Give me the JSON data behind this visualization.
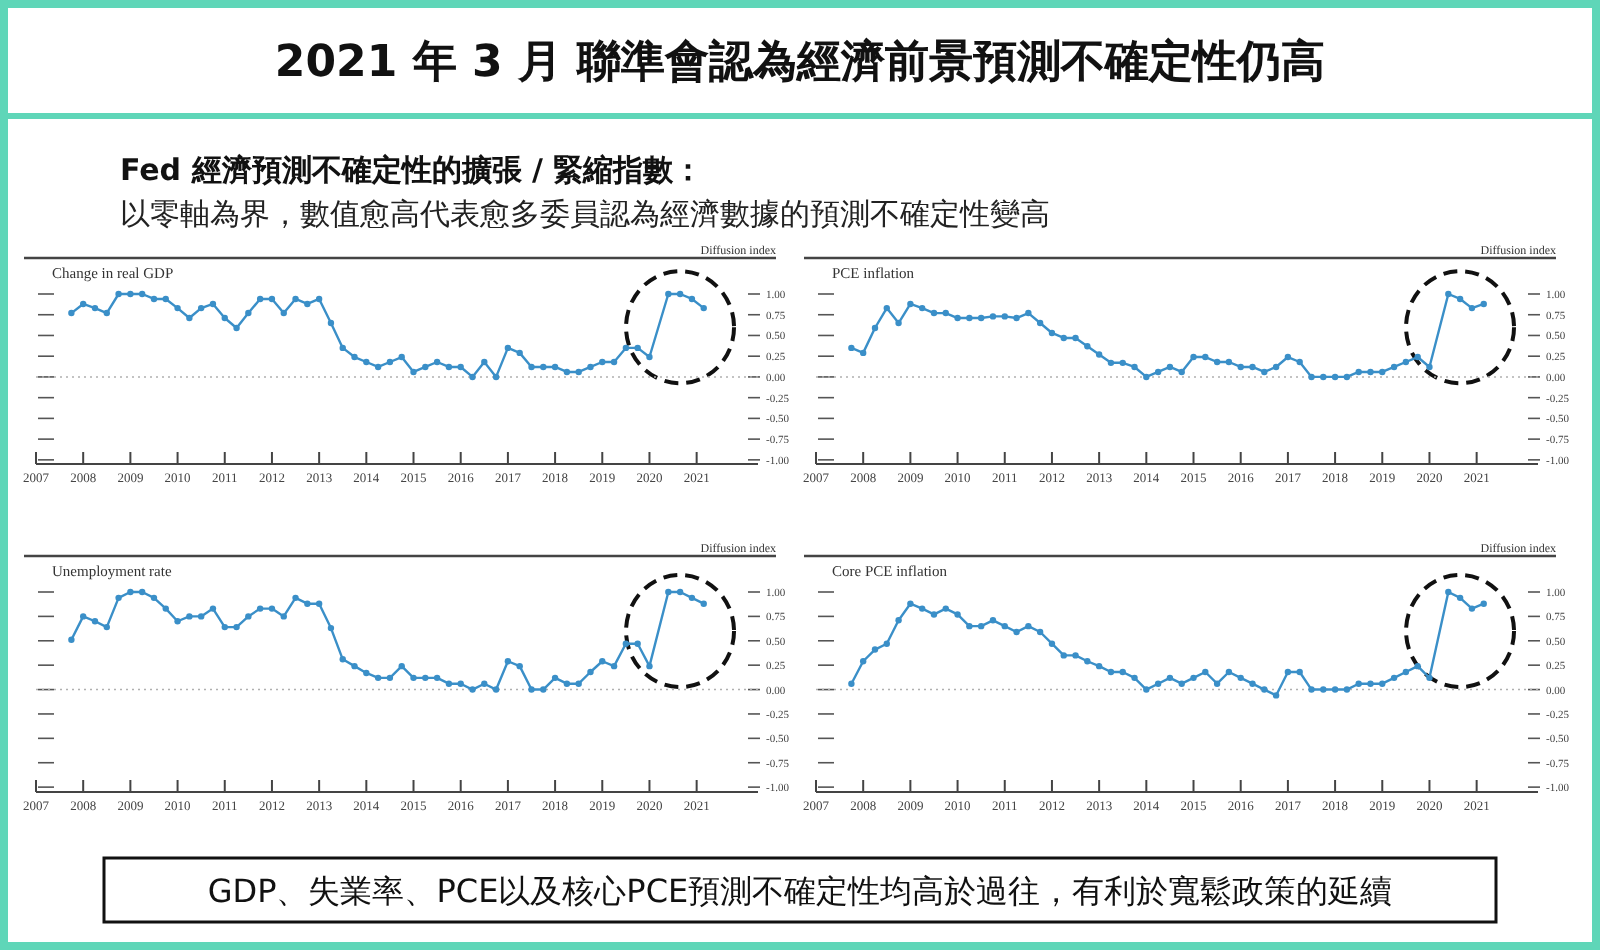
{
  "chart_data": [
    {
      "type": "other",
      "title": "2021 年 3 月 聯準會認為經濟前景預測不確定性仍高",
      "subtitle": "Fed 經濟預測不確定性的擴張 / 緊縮指數：",
      "annotations": [
        "以零軸為界，數值愈高代表愈多委員認為經濟數據的預測不確定性變高",
        "GDP、失業率、PCE以及核心PCE預測不確定性均高於過往，有利於寬鬆政策的延續"
      ]
    },
    {
      "type": "line",
      "title": "Change in real GDP",
      "ylabel": "Diffusion index",
      "marker": "circle",
      "xlim": [
        2007,
        2022.3
      ],
      "xticks": [
        2007,
        2008,
        2009,
        2010,
        2011,
        2012,
        2013,
        2014,
        2015,
        2016,
        2017,
        2018,
        2019,
        2020,
        2021
      ],
      "ylim": [
        -1.05,
        1.0
      ],
      "yticks": [
        {
          "value": 1,
          "label": "1.00"
        },
        {
          "value": 0.75,
          "label": "0.75"
        },
        {
          "value": 0.5,
          "label": "0.50"
        },
        {
          "value": 0.25,
          "label": "0.25"
        },
        {
          "value": 0,
          "label": "0.00"
        },
        {
          "value": -0.25,
          "label": "-0.25"
        },
        {
          "value": -0.5,
          "label": "-0.50"
        },
        {
          "value": -0.75,
          "label": "-0.75"
        },
        {
          "value": -1,
          "label": "-1.00"
        }
      ],
      "ref_lines": [
        {
          "axis": "y",
          "value": 0,
          "line_style": "dotted",
          "color": "#b0b0b0"
        }
      ],
      "series": [
        {
          "color": "#3a8fc8",
          "x": [
            2007.75,
            2008,
            2008.25,
            2008.5,
            2008.75,
            2009,
            2009.25,
            2009.5,
            2009.75,
            2010,
            2010.25,
            2010.5,
            2010.75,
            2011,
            2011.25,
            2011.5,
            2011.75,
            2012,
            2012.25,
            2012.5,
            2012.75,
            2013,
            2013.25,
            2013.5,
            2013.75,
            2014,
            2014.25,
            2014.5,
            2014.75,
            2015,
            2015.25,
            2015.5,
            2015.75,
            2016,
            2016.25,
            2016.5,
            2016.75,
            2017,
            2017.25,
            2017.5,
            2017.75,
            2018,
            2018.25,
            2018.5,
            2018.75,
            2019,
            2019.25,
            2019.5,
            2019.75,
            2020,
            2020.4,
            2020.65,
            2020.9,
            2021.15
          ],
          "values": [
            0.77,
            0.88,
            0.83,
            0.77,
            1.0,
            1.0,
            1.0,
            0.94,
            0.94,
            0.83,
            0.71,
            0.83,
            0.88,
            0.71,
            0.59,
            0.77,
            0.94,
            0.94,
            0.77,
            0.94,
            0.88,
            0.94,
            0.65,
            0.35,
            0.24,
            0.18,
            0.12,
            0.18,
            0.24,
            0.06,
            0.12,
            0.18,
            0.12,
            0.12,
            0.0,
            0.18,
            0.0,
            0.35,
            0.29,
            0.12,
            0.12,
            0.12,
            0.06,
            0.06,
            0.12,
            0.18,
            0.18,
            0.35,
            0.35,
            0.24,
            1.0,
            1.0,
            0.94,
            0.83
          ]
        }
      ]
    },
    {
      "type": "line",
      "title": "PCE inflation",
      "ylabel": "Diffusion index",
      "marker": "circle",
      "xlim": [
        2007,
        2022.3
      ],
      "xticks": [
        2007,
        2008,
        2009,
        2010,
        2011,
        2012,
        2013,
        2014,
        2015,
        2016,
        2017,
        2018,
        2019,
        2020,
        2021
      ],
      "ylim": [
        -1.05,
        1.0
      ],
      "yticks": [
        {
          "value": 1,
          "label": "1.00"
        },
        {
          "value": 0.75,
          "label": "0.75"
        },
        {
          "value": 0.5,
          "label": "0.50"
        },
        {
          "value": 0.25,
          "label": "0.25"
        },
        {
          "value": 0,
          "label": "0.00"
        },
        {
          "value": -0.25,
          "label": "-0.25"
        },
        {
          "value": -0.5,
          "label": "-0.50"
        },
        {
          "value": -0.75,
          "label": "-0.75"
        },
        {
          "value": -1,
          "label": "-1.00"
        }
      ],
      "ref_lines": [
        {
          "axis": "y",
          "value": 0,
          "line_style": "dotted",
          "color": "#b0b0b0"
        }
      ],
      "series": [
        {
          "color": "#3a8fc8",
          "x": [
            2007.75,
            2008,
            2008.25,
            2008.5,
            2008.75,
            2009,
            2009.25,
            2009.5,
            2009.75,
            2010,
            2010.25,
            2010.5,
            2010.75,
            2011,
            2011.25,
            2011.5,
            2011.75,
            2012,
            2012.25,
            2012.5,
            2012.75,
            2013,
            2013.25,
            2013.5,
            2013.75,
            2014,
            2014.25,
            2014.5,
            2014.75,
            2015,
            2015.25,
            2015.5,
            2015.75,
            2016,
            2016.25,
            2016.5,
            2016.75,
            2017,
            2017.25,
            2017.5,
            2017.75,
            2018,
            2018.25,
            2018.5,
            2018.75,
            2019,
            2019.25,
            2019.5,
            2019.75,
            2020,
            2020.4,
            2020.65,
            2020.9,
            2021.15
          ],
          "values": [
            0.35,
            0.29,
            0.59,
            0.83,
            0.65,
            0.88,
            0.83,
            0.77,
            0.77,
            0.71,
            0.71,
            0.71,
            0.73,
            0.73,
            0.71,
            0.77,
            0.65,
            0.53,
            0.47,
            0.47,
            0.37,
            0.27,
            0.17,
            0.17,
            0.12,
            0.0,
            0.06,
            0.12,
            0.06,
            0.24,
            0.24,
            0.18,
            0.18,
            0.12,
            0.12,
            0.06,
            0.12,
            0.24,
            0.18,
            0.0,
            0.0,
            0.0,
            0.0,
            0.06,
            0.06,
            0.06,
            0.12,
            0.18,
            0.24,
            0.12,
            1.0,
            0.94,
            0.83,
            0.88
          ]
        }
      ]
    },
    {
      "type": "line",
      "title": "Unemployment rate",
      "ylabel": "Diffusion index",
      "marker": "circle",
      "xlim": [
        2007,
        2022.3
      ],
      "xticks": [
        2007,
        2008,
        2009,
        2010,
        2011,
        2012,
        2013,
        2014,
        2015,
        2016,
        2017,
        2018,
        2019,
        2020,
        2021
      ],
      "ylim": [
        -1.05,
        1.0
      ],
      "yticks": [
        {
          "value": 1,
          "label": "1.00"
        },
        {
          "value": 0.75,
          "label": "0.75"
        },
        {
          "value": 0.5,
          "label": "0.50"
        },
        {
          "value": 0.25,
          "label": "0.25"
        },
        {
          "value": 0,
          "label": "0.00"
        },
        {
          "value": -0.25,
          "label": "-0.25"
        },
        {
          "value": -0.5,
          "label": "-0.50"
        },
        {
          "value": -0.75,
          "label": "-0.75"
        },
        {
          "value": -1,
          "label": "-1.00"
        }
      ],
      "ref_lines": [
        {
          "axis": "y",
          "value": 0,
          "line_style": "dotted",
          "color": "#b0b0b0"
        }
      ],
      "series": [
        {
          "color": "#3a8fc8",
          "x": [
            2007.75,
            2008,
            2008.25,
            2008.5,
            2008.75,
            2009,
            2009.25,
            2009.5,
            2009.75,
            2010,
            2010.25,
            2010.5,
            2010.75,
            2011,
            2011.25,
            2011.5,
            2011.75,
            2012,
            2012.25,
            2012.5,
            2012.75,
            2013,
            2013.25,
            2013.5,
            2013.75,
            2014,
            2014.25,
            2014.5,
            2014.75,
            2015,
            2015.25,
            2015.5,
            2015.75,
            2016,
            2016.25,
            2016.5,
            2016.75,
            2017,
            2017.25,
            2017.5,
            2017.75,
            2018,
            2018.25,
            2018.5,
            2018.75,
            2019,
            2019.25,
            2019.5,
            2019.75,
            2020,
            2020.4,
            2020.65,
            2020.9,
            2021.15
          ],
          "values": [
            0.51,
            0.75,
            0.7,
            0.64,
            0.94,
            1.0,
            1.0,
            0.94,
            0.83,
            0.7,
            0.75,
            0.75,
            0.83,
            0.64,
            0.64,
            0.75,
            0.83,
            0.83,
            0.75,
            0.94,
            0.88,
            0.88,
            0.63,
            0.31,
            0.24,
            0.17,
            0.12,
            0.12,
            0.24,
            0.12,
            0.12,
            0.12,
            0.06,
            0.06,
            0.0,
            0.06,
            0.0,
            0.29,
            0.24,
            0.0,
            0.0,
            0.12,
            0.06,
            0.06,
            0.18,
            0.29,
            0.24,
            0.47,
            0.47,
            0.24,
            1.0,
            1.0,
            0.94,
            0.88
          ]
        }
      ]
    },
    {
      "type": "line",
      "title": "Core PCE inflation",
      "ylabel": "Diffusion index",
      "marker": "circle",
      "xlim": [
        2007,
        2022.3
      ],
      "xticks": [
        2007,
        2008,
        2009,
        2010,
        2011,
        2012,
        2013,
        2014,
        2015,
        2016,
        2017,
        2018,
        2019,
        2020,
        2021
      ],
      "ylim": [
        -1.05,
        1.0
      ],
      "yticks": [
        {
          "value": 1,
          "label": "1.00"
        },
        {
          "value": 0.75,
          "label": "0.75"
        },
        {
          "value": 0.5,
          "label": "0.50"
        },
        {
          "value": 0.25,
          "label": "0.25"
        },
        {
          "value": 0,
          "label": "0.00"
        },
        {
          "value": -0.25,
          "label": "-0.25"
        },
        {
          "value": -0.5,
          "label": "-0.50"
        },
        {
          "value": -0.75,
          "label": "-0.75"
        },
        {
          "value": -1,
          "label": "-1.00"
        }
      ],
      "ref_lines": [
        {
          "axis": "y",
          "value": 0,
          "line_style": "dotted",
          "color": "#b0b0b0"
        }
      ],
      "series": [
        {
          "color": "#3a8fc8",
          "x": [
            2007.75,
            2008,
            2008.25,
            2008.5,
            2008.75,
            2009,
            2009.25,
            2009.5,
            2009.75,
            2010,
            2010.25,
            2010.5,
            2010.75,
            2011,
            2011.25,
            2011.5,
            2011.75,
            2012,
            2012.25,
            2012.5,
            2012.75,
            2013,
            2013.25,
            2013.5,
            2013.75,
            2014,
            2014.25,
            2014.5,
            2014.75,
            2015,
            2015.25,
            2015.5,
            2015.75,
            2016,
            2016.25,
            2016.5,
            2016.75,
            2017,
            2017.25,
            2017.5,
            2017.75,
            2018,
            2018.25,
            2018.5,
            2018.75,
            2019,
            2019.25,
            2019.5,
            2019.75,
            2020,
            2020.4,
            2020.65,
            2020.9,
            2021.15
          ],
          "values": [
            0.06,
            0.29,
            0.41,
            0.47,
            0.71,
            0.88,
            0.83,
            0.77,
            0.83,
            0.77,
            0.65,
            0.65,
            0.71,
            0.65,
            0.59,
            0.65,
            0.59,
            0.47,
            0.35,
            0.35,
            0.29,
            0.24,
            0.18,
            0.18,
            0.12,
            0.0,
            0.06,
            0.12,
            0.06,
            0.12,
            0.18,
            0.06,
            0.18,
            0.12,
            0.06,
            0.0,
            -0.06,
            0.18,
            0.18,
            0.0,
            0.0,
            0.0,
            0.0,
            0.06,
            0.06,
            0.06,
            0.12,
            0.18,
            0.24,
            0.12,
            1.0,
            0.94,
            0.83,
            0.88
          ]
        }
      ]
    }
  ]
}
